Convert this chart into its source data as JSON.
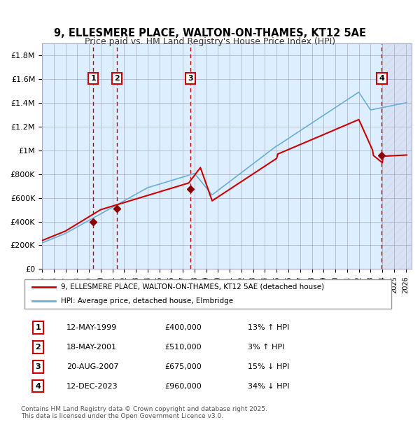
{
  "title": "9, ELLESMERE PLACE, WALTON-ON-THAMES, KT12 5AE",
  "subtitle": "Price paid vs. HM Land Registry's House Price Index (HPI)",
  "xlim": [
    1995.0,
    2026.5
  ],
  "ylim": [
    0,
    1900000
  ],
  "yticks": [
    0,
    200000,
    400000,
    600000,
    800000,
    1000000,
    1200000,
    1400000,
    1600000,
    1800000
  ],
  "ytick_labels": [
    "£0",
    "£200K",
    "£400K",
    "£600K",
    "£800K",
    "£1M",
    "£1.2M",
    "£1.4M",
    "£1.6M",
    "£1.8M"
  ],
  "sale_dates_decimal": [
    1999.36,
    2001.38,
    2007.64,
    2023.95
  ],
  "sale_prices": [
    400000,
    510000,
    675000,
    960000
  ],
  "sale_labels": [
    "1",
    "2",
    "3",
    "4"
  ],
  "hpi_color": "#6baed6",
  "price_color": "#cc0000",
  "sale_marker_color": "#8b0000",
  "vline_color": "#cc0000",
  "shade_color_between_sales": "#ddeeff",
  "background_color": "#ddeeff",
  "grid_color": "#aaaacc",
  "label_box_color": "#cc0000",
  "table_data": [
    [
      "1",
      "12-MAY-1999",
      "£400,000",
      "13% ↑ HPI"
    ],
    [
      "2",
      "18-MAY-2001",
      "£510,000",
      "3% ↑ HPI"
    ],
    [
      "3",
      "20-AUG-2007",
      "£675,000",
      "15% ↓ HPI"
    ],
    [
      "4",
      "12-DEC-2023",
      "£960,000",
      "34% ↓ HPI"
    ]
  ],
  "legend_line1": "9, ELLESMERE PLACE, WALTON-ON-THAMES, KT12 5AE (detached house)",
  "legend_line2": "HPI: Average price, detached house, Elmbridge",
  "footnote": "Contains HM Land Registry data © Crown copyright and database right 2025.\nThis data is licensed under the Open Government Licence v3.0."
}
